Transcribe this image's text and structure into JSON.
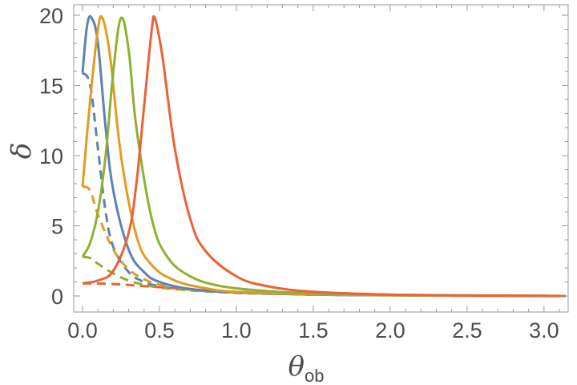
{
  "chart_data": {
    "type": "line",
    "xlabel": "θ",
    "xlabel_sub": "ob",
    "ylabel": "δ",
    "xlim": [
      0,
      3.14159
    ],
    "ylim": [
      0,
      20
    ],
    "xticks": [
      0.0,
      0.5,
      1.0,
      1.5,
      2.0,
      2.5,
      3.0
    ],
    "xtick_labels": [
      "0.0",
      "0.5",
      "1.0",
      "1.5",
      "2.0",
      "2.5",
      "3.0"
    ],
    "yticks": [
      0,
      5,
      10,
      15,
      20
    ],
    "ytick_labels": [
      "0",
      "5",
      "10",
      "15",
      "20"
    ],
    "grid": false,
    "legend": "none",
    "series": [
      {
        "style": "solid",
        "color": "#5E81B5",
        "peak_x": 0.06,
        "peak_y": 19.8,
        "x": [
          0,
          0.03,
          0.06,
          0.1,
          0.15,
          0.2,
          0.3,
          0.4,
          0.5,
          0.7,
          1.0,
          1.5,
          2.0,
          2.5,
          3.14159
        ],
        "y": [
          15.9,
          19.3,
          19.8,
          18.0,
          12.0,
          7.5,
          3.3,
          1.7,
          1.0,
          0.5,
          0.25,
          0.1,
          0.05,
          0.02,
          0
        ]
      },
      {
        "style": "dashed",
        "color": "#5E81B5",
        "x": [
          0,
          0.05,
          0.1,
          0.15,
          0.2,
          0.3,
          0.4,
          0.5,
          0.7,
          1.0,
          1.5,
          2.0,
          2.5,
          3.14159
        ],
        "y": [
          15.9,
          15.0,
          10.5,
          6.0,
          3.5,
          1.7,
          1.0,
          0.7,
          0.4,
          0.25,
          0.1,
          0.05,
          0.02,
          0
        ]
      },
      {
        "style": "solid",
        "color": "#E19C24",
        "peak_x": 0.13,
        "peak_y": 19.8,
        "x": [
          0,
          0.05,
          0.1,
          0.13,
          0.18,
          0.25,
          0.35,
          0.45,
          0.6,
          0.8,
          1.0,
          1.5,
          2.0,
          2.5,
          3.14159
        ],
        "y": [
          7.8,
          14.0,
          19.0,
          19.8,
          17.0,
          10.0,
          4.3,
          2.2,
          1.1,
          0.55,
          0.3,
          0.12,
          0.06,
          0.02,
          0
        ]
      },
      {
        "style": "dashed",
        "color": "#E19C24",
        "x": [
          0,
          0.05,
          0.1,
          0.2,
          0.3,
          0.4,
          0.5,
          0.7,
          1.0,
          1.5,
          2.0,
          2.5,
          3.14159
        ],
        "y": [
          7.8,
          7.5,
          5.8,
          3.3,
          1.9,
          1.2,
          0.8,
          0.45,
          0.25,
          0.1,
          0.05,
          0.02,
          0
        ]
      },
      {
        "style": "solid",
        "color": "#8FB032",
        "peak_x": 0.25,
        "peak_y": 19.8,
        "x": [
          0,
          0.05,
          0.1,
          0.15,
          0.2,
          0.25,
          0.3,
          0.35,
          0.45,
          0.55,
          0.7,
          0.9,
          1.2,
          1.5,
          2.0,
          2.5,
          3.14159
        ],
        "y": [
          2.8,
          3.8,
          6.0,
          10.0,
          16.0,
          19.8,
          17.5,
          12.0,
          5.5,
          2.8,
          1.4,
          0.7,
          0.35,
          0.18,
          0.08,
          0.03,
          0
        ]
      },
      {
        "style": "dashed",
        "color": "#8FB032",
        "x": [
          0,
          0.05,
          0.1,
          0.2,
          0.3,
          0.4,
          0.5,
          0.7,
          1.0,
          1.5,
          2.0,
          2.5,
          3.14159
        ],
        "y": [
          2.8,
          2.7,
          2.3,
          1.6,
          1.1,
          0.8,
          0.6,
          0.4,
          0.22,
          0.1,
          0.05,
          0.02,
          0
        ]
      },
      {
        "style": "solid",
        "color": "#EB6235",
        "peak_x": 0.47,
        "peak_y": 19.8,
        "x": [
          0,
          0.1,
          0.2,
          0.3,
          0.35,
          0.4,
          0.45,
          0.47,
          0.52,
          0.6,
          0.7,
          0.8,
          1.0,
          1.2,
          1.5,
          2.0,
          2.5,
          3.14159
        ],
        "y": [
          0.9,
          1.1,
          1.8,
          4.5,
          8.0,
          13.5,
          19.0,
          19.8,
          17.0,
          10.5,
          5.5,
          3.2,
          1.4,
          0.7,
          0.3,
          0.1,
          0.04,
          0
        ]
      },
      {
        "style": "dashed",
        "color": "#EB6235",
        "x": [
          0,
          0.2,
          0.4,
          0.6,
          0.8,
          1.0,
          1.5,
          2.0,
          2.5,
          3.14159
        ],
        "y": [
          0.9,
          0.85,
          0.7,
          0.55,
          0.4,
          0.3,
          0.15,
          0.06,
          0.02,
          0
        ]
      }
    ]
  }
}
